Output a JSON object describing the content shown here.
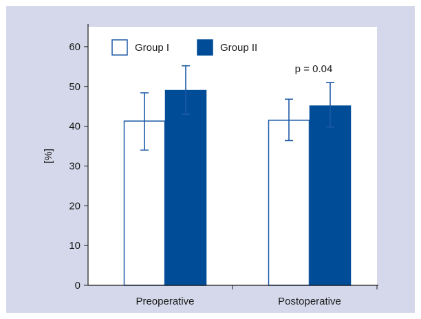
{
  "chart_data": {
    "type": "bar",
    "categories": [
      "Preoperative",
      "Postoperative"
    ],
    "series": [
      {
        "name": "Group I",
        "values": [
          41.3,
          41.5
        ],
        "error_low": [
          34.0,
          36.4
        ],
        "error_high": [
          48.4,
          46.8
        ],
        "color": "#ffffff",
        "stroke": "#1d5aa6"
      },
      {
        "name": "Group II",
        "values": [
          49.0,
          45.1
        ],
        "error_low": [
          43.0,
          39.8
        ],
        "error_high": [
          55.2,
          51.0
        ],
        "color": "#004c97",
        "stroke": "#004c97"
      }
    ],
    "ylabel": "[%]",
    "ylim": [
      0,
      65
    ],
    "yticks": [
      0,
      10,
      20,
      30,
      40,
      50,
      60
    ],
    "legend": "top-left",
    "grid": false,
    "annotations": [
      {
        "text": "p = 0.04",
        "category": "Postoperative"
      }
    ],
    "background": "#d5d8ea",
    "plot_background": "#ffffff",
    "error_color": "#1d5aa6"
  }
}
